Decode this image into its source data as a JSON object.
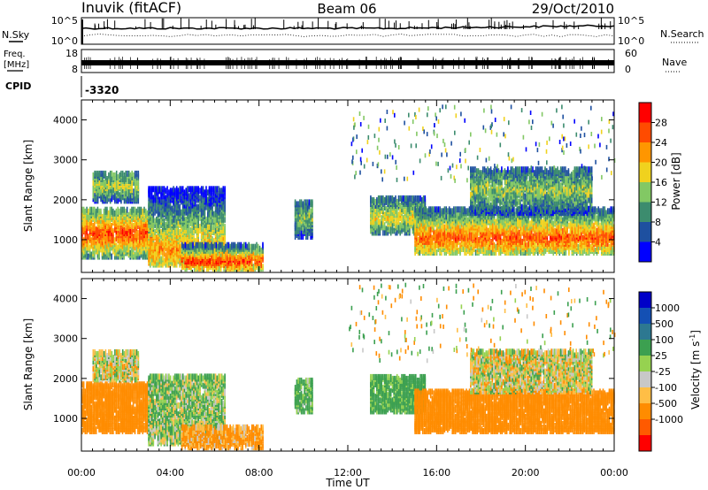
{
  "header": {
    "station": "Inuvik (fitACF)",
    "beam": "Beam 06",
    "date": "29/Oct/2010"
  },
  "top_panels": {
    "nsky_label": "N.Sky",
    "nsearch_label": "N.Search",
    "noise_ticks": [
      "10^5",
      "10^0"
    ],
    "freq_label_line1": "Freq.",
    "freq_label_line2": "[MHz]",
    "freq_ticks": [
      "18",
      "8"
    ],
    "nave_label": "Nave",
    "nave_ticks": [
      "60",
      "0"
    ],
    "cpid_label": "CPID",
    "cpid_value": "-3320"
  },
  "colors": {
    "power_scale": [
      "#0000ff",
      "#1e50a0",
      "#3c8c6e",
      "#82c864",
      "#f0d21e",
      "#ff9600",
      "#ff4b00",
      "#ff0000"
    ],
    "velocity_scale": [
      "#ff0000",
      "#ff5a00",
      "#ff8c00",
      "#ffbe46",
      "#c8c8c8",
      "#96d250",
      "#3ca050",
      "#2d7891",
      "#1450b4",
      "#0000c8"
    ]
  },
  "chart_data": [
    {
      "type": "heatmap",
      "title": "",
      "xlabel": "",
      "ylabel": "Slant Range [km]",
      "x_ticks": [
        "00:00",
        "04:00",
        "08:00",
        "12:00",
        "16:00",
        "20:00",
        "00:00"
      ],
      "y_ticks": [
        1000,
        2000,
        3000,
        4000
      ],
      "xlim_hours": [
        0,
        24
      ],
      "ylim_km": [
        180,
        4500
      ],
      "colorbar": {
        "label": "Power [dB]",
        "tick_labels": [
          "28",
          "24",
          "20",
          "16",
          "12",
          "8",
          "4"
        ],
        "range": [
          0,
          32
        ]
      },
      "echo_regions": [
        {
          "t0": 0.0,
          "t1": 3.2,
          "r_low": 500,
          "r_high": 1700,
          "peak_r": 1100,
          "level": 27
        },
        {
          "t0": 0.5,
          "t1": 2.6,
          "r_low": 1900,
          "r_high": 2600,
          "peak_r": 2300,
          "level": 17
        },
        {
          "t0": 3.0,
          "t1": 6.5,
          "r_low": 300,
          "r_high": 2200,
          "peak_r": 700,
          "level": 22
        },
        {
          "t0": 4.5,
          "t1": 8.2,
          "r_low": 200,
          "r_high": 800,
          "peak_r": 400,
          "level": 28
        },
        {
          "t0": 9.6,
          "t1": 10.4,
          "r_low": 1000,
          "r_high": 1900,
          "peak_r": 1500,
          "level": 14
        },
        {
          "t0": 13.0,
          "t1": 15.5,
          "r_low": 1100,
          "r_high": 2000,
          "peak_r": 1500,
          "level": 18
        },
        {
          "t0": 15.0,
          "t1": 24.0,
          "r_low": 600,
          "r_high": 1700,
          "peak_r": 1000,
          "level": 26
        },
        {
          "t0": 17.5,
          "t1": 23.0,
          "r_low": 1600,
          "r_high": 2700,
          "peak_r": 2200,
          "level": 15
        }
      ]
    },
    {
      "type": "heatmap",
      "title": "",
      "xlabel": "Time UT",
      "ylabel": "Slant Range [km]",
      "x_ticks": [
        "00:00",
        "04:00",
        "08:00",
        "12:00",
        "16:00",
        "20:00",
        "00:00"
      ],
      "y_ticks": [
        1000,
        2000,
        3000,
        4000
      ],
      "xlim_hours": [
        0,
        24
      ],
      "ylim_km": [
        180,
        4500
      ],
      "colorbar": {
        "label": "Velocity [m s^-1]",
        "tick_labels": [
          "1000",
          "500",
          "100",
          "25",
          "-25",
          "-100",
          "-500",
          "-1000"
        ],
        "range": [
          -1000,
          1000
        ]
      },
      "echo_regions": [
        {
          "t0": 0.0,
          "t1": 3.2,
          "r_low": 600,
          "r_high": 1800,
          "velocity": -300
        },
        {
          "t0": 0.5,
          "t1": 2.6,
          "r_low": 1900,
          "r_high": 2600,
          "velocity": 0
        },
        {
          "t0": 3.0,
          "t1": 6.5,
          "r_low": 300,
          "r_high": 2000,
          "velocity": 80
        },
        {
          "t0": 4.5,
          "t1": 8.2,
          "r_low": 200,
          "r_high": 700,
          "velocity": -150
        },
        {
          "t0": 9.6,
          "t1": 10.4,
          "r_low": 1100,
          "r_high": 1900,
          "velocity": 150
        },
        {
          "t0": 13.0,
          "t1": 15.5,
          "r_low": 1100,
          "r_high": 2000,
          "velocity": 200
        },
        {
          "t0": 15.0,
          "t1": 24.0,
          "r_low": 600,
          "r_high": 1600,
          "velocity": -350
        },
        {
          "t0": 17.5,
          "t1": 23.0,
          "r_low": 1600,
          "r_high": 2600,
          "velocity": 0
        }
      ]
    }
  ]
}
